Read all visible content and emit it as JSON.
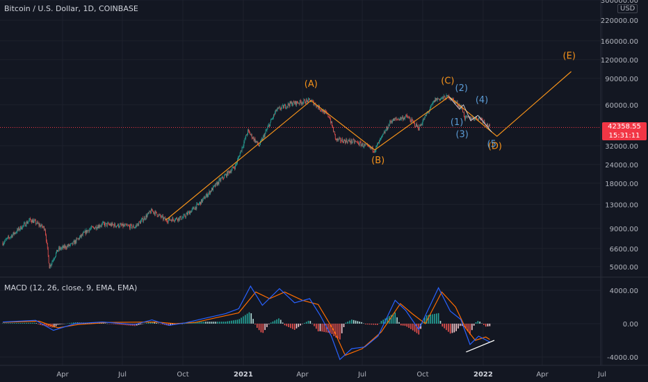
{
  "header": {
    "title": "Bitcoin / U.S. Dollar, 1D, COINBASE",
    "currency": "USD"
  },
  "macd_header": {
    "title": "MACD (12, 26, close, 9, EMA, EMA)"
  },
  "last_price": {
    "value": "42358.55",
    "countdown": "15:31:11"
  },
  "colors": {
    "up": "#26a69a",
    "down": "#ef5350",
    "wave_orange": "#f7931a",
    "wave_blue": "#5b9bd5",
    "macd_line": "#2962ff",
    "signal_line": "#ff6d00",
    "price_line": "#f23645"
  },
  "chart_data": [
    {
      "type": "candlestick",
      "title": "Bitcoin / U.S. Dollar, 1D, COINBASE",
      "scale": "log",
      "y_ticks": [
        "300000.00",
        "220000.00",
        "160000.00",
        "120000.00",
        "90000.00",
        "60000.00",
        "32000.00",
        "24000.00",
        "18000.00",
        "13000.00",
        "9000.00",
        "6600.00",
        "5000.00"
      ],
      "y_tick_values": [
        300000,
        220000,
        160000,
        120000,
        90000,
        60000,
        32000,
        24000,
        18000,
        13000,
        9000,
        6600,
        5000
      ],
      "x_ticks": [
        "Apr",
        "Jul",
        "Oct",
        "2021",
        "Apr",
        "Jul",
        "Oct",
        "2022",
        "Apr",
        "Jul"
      ],
      "x_tick_dates": [
        "2020-04-01",
        "2020-07-01",
        "2020-10-01",
        "2021-01-01",
        "2021-04-01",
        "2021-07-01",
        "2021-10-01",
        "2022-01-01",
        "2022-04-01",
        "2022-07-01"
      ],
      "x_tick_bold": [
        false,
        false,
        false,
        true,
        false,
        false,
        false,
        true,
        false,
        false
      ],
      "ylim": [
        4300,
        300000
      ],
      "last_price": 42358.55,
      "price_path": [
        [
          "2020-01-01",
          7200
        ],
        [
          "2020-02-12",
          10300
        ],
        [
          "2020-03-05",
          9000
        ],
        [
          "2020-03-12",
          5000
        ],
        [
          "2020-03-25",
          6500
        ],
        [
          "2020-04-15",
          7000
        ],
        [
          "2020-05-10",
          8800
        ],
        [
          "2020-06-01",
          9600
        ],
        [
          "2020-07-20",
          9200
        ],
        [
          "2020-08-15",
          11800
        ],
        [
          "2020-09-05",
          10200
        ],
        [
          "2020-10-01",
          10600
        ],
        [
          "2020-10-25",
          13000
        ],
        [
          "2020-11-25",
          18500
        ],
        [
          "2020-12-20",
          23500
        ],
        [
          "2021-01-08",
          40000
        ],
        [
          "2021-01-25",
          32000
        ],
        [
          "2021-02-20",
          55000
        ],
        [
          "2021-03-13",
          61000
        ],
        [
          "2021-04-14",
          64000
        ],
        [
          "2021-05-12",
          50000
        ],
        [
          "2021-05-22",
          35000
        ],
        [
          "2021-06-20",
          34000
        ],
        [
          "2021-07-20",
          30000
        ],
        [
          "2021-08-14",
          47000
        ],
        [
          "2021-09-07",
          50000
        ],
        [
          "2021-09-25",
          42000
        ],
        [
          "2021-10-20",
          65000
        ],
        [
          "2021-11-10",
          68000
        ],
        [
          "2021-11-30",
          57000
        ],
        [
          "2021-12-04",
          49000
        ],
        [
          "2021-12-28",
          49000
        ],
        [
          "2022-01-11",
          42358
        ]
      ],
      "waves": [
        {
          "name": "ABCDE",
          "points": [
            [
              "2020-09-05",
              10200
            ],
            [
              "2021-04-14",
              64000
            ],
            [
              "2021-07-20",
              30000
            ],
            [
              "2021-11-10",
              68000
            ],
            [
              "2022-01-22",
              37000
            ],
            [
              "2022-05-15",
              100000
            ]
          ]
        },
        {
          "name": "12345",
          "points": [
            [
              "2021-11-10",
              68000
            ],
            [
              "2021-11-26",
              56000
            ],
            [
              "2021-12-02",
              60000
            ],
            [
              "2021-12-13",
              47000
            ],
            [
              "2021-12-24",
              51000
            ],
            [
              "2022-01-14",
              39500
            ]
          ]
        }
      ],
      "annotations": [
        {
          "text": "(A)",
          "date": "2021-04-14",
          "price": 79000,
          "color": "orange"
        },
        {
          "text": "(B)",
          "date": "2021-07-25",
          "price": 24500,
          "color": "orange"
        },
        {
          "text": "(C)",
          "date": "2021-11-08",
          "price": 83000,
          "color": "orange"
        },
        {
          "text": "(D)",
          "date": "2022-01-19",
          "price": 30500,
          "color": "orange"
        },
        {
          "text": "(E)",
          "date": "2022-05-12",
          "price": 122000,
          "color": "orange"
        },
        {
          "text": "(1)",
          "date": "2021-11-22",
          "price": 44000,
          "color": "blue"
        },
        {
          "text": "(2)",
          "date": "2021-11-29",
          "price": 74000,
          "color": "blue"
        },
        {
          "text": "(3)",
          "date": "2021-11-30",
          "price": 36500,
          "color": "blue"
        },
        {
          "text": "(4)",
          "date": "2021-12-30",
          "price": 62000,
          "color": "blue"
        },
        {
          "text": "(5",
          "date": "2022-01-14",
          "price": 31500,
          "color": "blue"
        }
      ]
    },
    {
      "type": "line",
      "title": "MACD (12, 26, close, 9, EMA, EMA)",
      "y_ticks": [
        "4000.00",
        "0.00",
        "-4000.00"
      ],
      "y_tick_values": [
        4000,
        0,
        -4000
      ],
      "ylim": [
        -5000,
        5500
      ],
      "macd_points": [
        [
          "2020-01-01",
          200
        ],
        [
          "2020-02-20",
          400
        ],
        [
          "2020-03-18",
          -800
        ],
        [
          "2020-04-20",
          0
        ],
        [
          "2020-06-01",
          200
        ],
        [
          "2020-07-20",
          -100
        ],
        [
          "2020-08-15",
          450
        ],
        [
          "2020-09-10",
          -200
        ],
        [
          "2020-10-05",
          100
        ],
        [
          "2020-11-01",
          600
        ],
        [
          "2020-12-05",
          1200
        ],
        [
          "2020-12-25",
          1800
        ],
        [
          "2021-01-12",
          4500
        ],
        [
          "2021-01-30",
          2200
        ],
        [
          "2021-02-25",
          4200
        ],
        [
          "2021-03-20",
          2500
        ],
        [
          "2021-04-12",
          3000
        ],
        [
          "2021-04-28",
          1000
        ],
        [
          "2021-05-15",
          -1500
        ],
        [
          "2021-05-28",
          -4300
        ],
        [
          "2021-06-15",
          -3000
        ],
        [
          "2021-07-05",
          -2800
        ],
        [
          "2021-07-25",
          -1500
        ],
        [
          "2021-08-20",
          2800
        ],
        [
          "2021-09-05",
          1600
        ],
        [
          "2021-09-25",
          -700
        ],
        [
          "2021-10-25",
          4300
        ],
        [
          "2021-11-12",
          1500
        ],
        [
          "2021-11-28",
          500
        ],
        [
          "2021-12-12",
          -2500
        ],
        [
          "2021-12-25",
          -1500
        ],
        [
          "2022-01-11",
          -2200
        ]
      ],
      "signal_points": [
        [
          "2020-01-01",
          150
        ],
        [
          "2020-02-25",
          300
        ],
        [
          "2020-03-25",
          -500
        ],
        [
          "2020-04-25",
          -100
        ],
        [
          "2020-06-10",
          150
        ],
        [
          "2020-08-20",
          200
        ],
        [
          "2020-09-20",
          0
        ],
        [
          "2020-10-20",
          150
        ],
        [
          "2020-11-20",
          700
        ],
        [
          "2020-12-25",
          1300
        ],
        [
          "2021-01-20",
          3800
        ],
        [
          "2021-02-10",
          3000
        ],
        [
          "2021-03-05",
          3800
        ],
        [
          "2021-04-01",
          2800
        ],
        [
          "2021-04-25",
          2300
        ],
        [
          "2021-05-20",
          -1000
        ],
        [
          "2021-06-05",
          -3800
        ],
        [
          "2021-07-01",
          -3000
        ],
        [
          "2021-07-30",
          -1000
        ],
        [
          "2021-08-28",
          2400
        ],
        [
          "2021-09-15",
          1200
        ],
        [
          "2021-10-05",
          0
        ],
        [
          "2021-10-30",
          3800
        ],
        [
          "2021-11-20",
          2000
        ],
        [
          "2021-12-05",
          -500
        ],
        [
          "2021-12-20",
          -2000
        ],
        [
          "2022-01-05",
          -1600
        ],
        [
          "2022-01-11",
          -1900
        ]
      ],
      "divergence_line": [
        [
          "2021-12-06",
          -3400
        ],
        [
          "2022-01-18",
          -2000
        ]
      ]
    }
  ]
}
